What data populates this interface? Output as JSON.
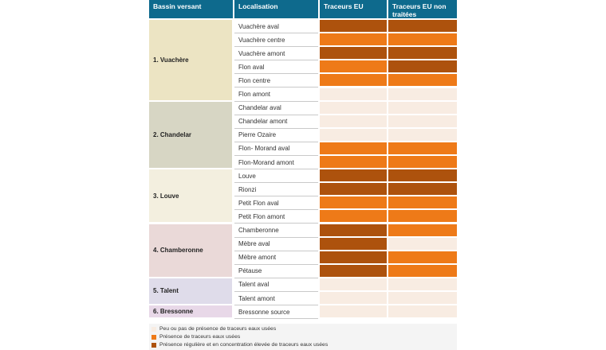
{
  "headers": {
    "basin": "Bassin versant",
    "location": "Localisation",
    "tracers_eu": "Traceurs EU",
    "tracers_eu_untreated": "Traceurs EU non traitées"
  },
  "colors": {
    "level_0": "#f8ece2",
    "level_1": "#ee7a18",
    "level_2": "#ad520d"
  },
  "basins": [
    {
      "label": "1. Vuachère",
      "color": "#ece4c3",
      "rows": [
        {
          "location": "Vuachère aval",
          "eu": 2,
          "eu_untreated": 2
        },
        {
          "location": "Vuachère centre",
          "eu": 1,
          "eu_untreated": 1
        },
        {
          "location": "Vuachère amont",
          "eu": 2,
          "eu_untreated": 2
        },
        {
          "location": "Flon aval",
          "eu": 1,
          "eu_untreated": 2
        },
        {
          "location": "Flon centre",
          "eu": 1,
          "eu_untreated": 1
        },
        {
          "location": "Flon amont",
          "eu": 0,
          "eu_untreated": 0
        }
      ]
    },
    {
      "label": "2. Chandelar",
      "color": "#d7d6c4",
      "rows": [
        {
          "location": "Chandelar aval",
          "eu": 0,
          "eu_untreated": 0
        },
        {
          "location": "Chandelar amont",
          "eu": 0,
          "eu_untreated": 0
        },
        {
          "location": "Pierre Ozaire",
          "eu": 0,
          "eu_untreated": 0
        },
        {
          "location": "Flon- Morand aval",
          "eu": 1,
          "eu_untreated": 1
        },
        {
          "location": "Flon-Morand amont",
          "eu": 1,
          "eu_untreated": 1
        }
      ]
    },
    {
      "label": "3. Louve",
      "color": "#f3efdf",
      "rows": [
        {
          "location": "Louve",
          "eu": 2,
          "eu_untreated": 2
        },
        {
          "location": "Rionzi",
          "eu": 2,
          "eu_untreated": 2
        },
        {
          "location": "Petit Flon aval",
          "eu": 1,
          "eu_untreated": 1
        },
        {
          "location": "Petit Flon amont",
          "eu": 1,
          "eu_untreated": 1
        }
      ]
    },
    {
      "label": "4. Chamberonne",
      "color": "#ead9d8",
      "rows": [
        {
          "location": "Chamberonne",
          "eu": 2,
          "eu_untreated": 1
        },
        {
          "location": "Mèbre aval",
          "eu": 2,
          "eu_untreated": 0
        },
        {
          "location": "Mèbre amont",
          "eu": 2,
          "eu_untreated": 1
        },
        {
          "location": "Pétause",
          "eu": 2,
          "eu_untreated": 1
        }
      ]
    },
    {
      "label": "5. Talent",
      "color": "#dfdcea",
      "rows": [
        {
          "location": "Talent aval",
          "eu": 0,
          "eu_untreated": 0
        },
        {
          "location": "Talent amont",
          "eu": 0,
          "eu_untreated": 0
        }
      ]
    },
    {
      "label": "6. Bressonne",
      "color": "#e8d8e8",
      "rows": [
        {
          "location": "Bressonne source",
          "eu": 0,
          "eu_untreated": 0
        }
      ]
    }
  ],
  "legend": [
    {
      "text": "Peu ou pas de présence de traceurs eaux usées",
      "level": 0
    },
    {
      "text": "Présence de traceurs eaux usées",
      "level": 1
    },
    {
      "text": "Présence régulière et en concentration élevée de traceurs eaux usées",
      "level": 2
    }
  ]
}
